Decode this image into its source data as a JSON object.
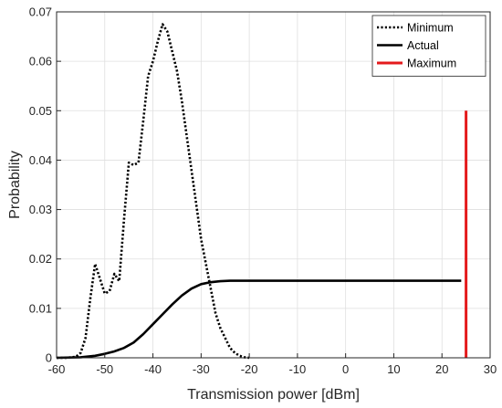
{
  "chart_data": {
    "type": "line",
    "xlabel": "Transmission power [dBm]",
    "ylabel": "Probability",
    "xlim": [
      -60,
      30
    ],
    "ylim": [
      0,
      0.07
    ],
    "xticks": [
      -60,
      -50,
      -40,
      -30,
      -20,
      -10,
      0,
      10,
      20,
      30
    ],
    "xtick_labels": [
      "-60",
      "-50",
      "-40",
      "-30",
      "-20",
      "-10",
      "0",
      "10",
      "20",
      "30"
    ],
    "yticks": [
      0,
      0.01,
      0.02,
      0.03,
      0.04,
      0.05,
      0.06,
      0.07
    ],
    "ytick_labels": [
      "0",
      "0.01",
      "0.02",
      "0.03",
      "0.04",
      "0.05",
      "0.06",
      "0.07"
    ],
    "grid": true,
    "legend_position": "top-right",
    "series": [
      {
        "name": "Minimum",
        "color": "#000000",
        "style": "dotted",
        "x": [
          -60,
          -58,
          -56,
          -55,
          -54,
          -53,
          -52,
          -51,
          -50,
          -49,
          -48,
          -47,
          -46,
          -45,
          -44,
          -43,
          -42,
          -41,
          -40,
          -39,
          -38,
          -37,
          -36,
          -35,
          -34,
          -33,
          -32,
          -31,
          -30,
          -29,
          -28,
          -27,
          -26,
          -25,
          -24,
          -23,
          -22,
          -21,
          -20
        ],
        "y": [
          0,
          0,
          0.0002,
          0.001,
          0.004,
          0.012,
          0.019,
          0.016,
          0.013,
          0.0135,
          0.017,
          0.0155,
          0.028,
          0.0395,
          0.039,
          0.0395,
          0.048,
          0.057,
          0.06,
          0.064,
          0.0675,
          0.066,
          0.062,
          0.058,
          0.052,
          0.045,
          0.038,
          0.031,
          0.024,
          0.019,
          0.014,
          0.009,
          0.006,
          0.004,
          0.002,
          0.001,
          0.0004,
          0.0001,
          0
        ]
      },
      {
        "name": "Actual",
        "color": "#000000",
        "style": "solid",
        "x": [
          -60,
          -55,
          -52,
          -50,
          -48,
          -46,
          -44,
          -42,
          -40,
          -38,
          -36,
          -34,
          -32,
          -30,
          -28,
          -26,
          -24,
          -22,
          -20,
          -15,
          -10,
          0,
          10,
          20,
          24
        ],
        "y": [
          0,
          0.0001,
          0.0004,
          0.0008,
          0.0013,
          0.002,
          0.0031,
          0.0048,
          0.0068,
          0.0088,
          0.0108,
          0.0126,
          0.014,
          0.0149,
          0.0153,
          0.0155,
          0.0156,
          0.0156,
          0.0156,
          0.0156,
          0.0156,
          0.0156,
          0.0156,
          0.0156,
          0.0156
        ]
      },
      {
        "name": "Maximum",
        "color": "#e41a1c",
        "style": "solid",
        "x": [
          25,
          25
        ],
        "y": [
          0,
          0.05
        ]
      }
    ]
  }
}
